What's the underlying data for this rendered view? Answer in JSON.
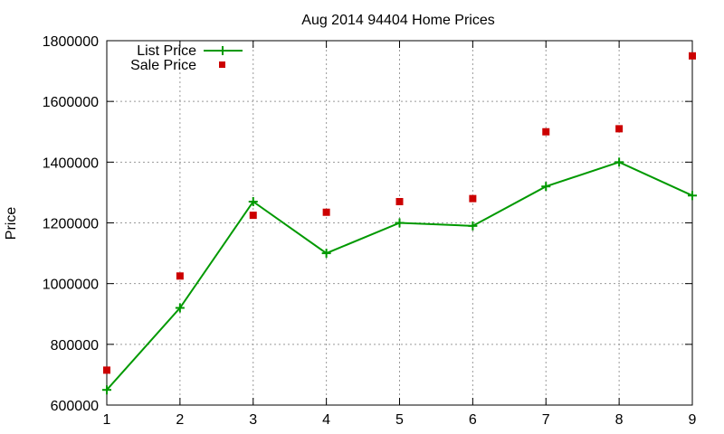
{
  "chart_data": {
    "type": "line",
    "title": "Aug 2014 94404 Home Prices",
    "xlabel": "",
    "ylabel": "Price",
    "x": [
      1,
      2,
      3,
      4,
      5,
      6,
      7,
      8,
      9
    ],
    "xlim": [
      1,
      9
    ],
    "ylim": [
      600000,
      1800000
    ],
    "xticks": [
      1,
      2,
      3,
      4,
      5,
      6,
      7,
      8,
      9
    ],
    "yticks": [
      600000,
      800000,
      1000000,
      1200000,
      1400000,
      1600000,
      1800000
    ],
    "grid": true,
    "legend_position": "top-left",
    "series": [
      {
        "name": "List Price",
        "style": "line-with-plus-markers",
        "color": "#009900",
        "values": [
          650000,
          920000,
          1270000,
          1100000,
          1200000,
          1190000,
          1320000,
          1400000,
          1290000
        ]
      },
      {
        "name": "Sale Price",
        "style": "square-markers",
        "color": "#cc0000",
        "values": [
          715000,
          1025000,
          1225000,
          1235000,
          1270000,
          1280000,
          1500000,
          1510000,
          1750000
        ]
      }
    ]
  }
}
